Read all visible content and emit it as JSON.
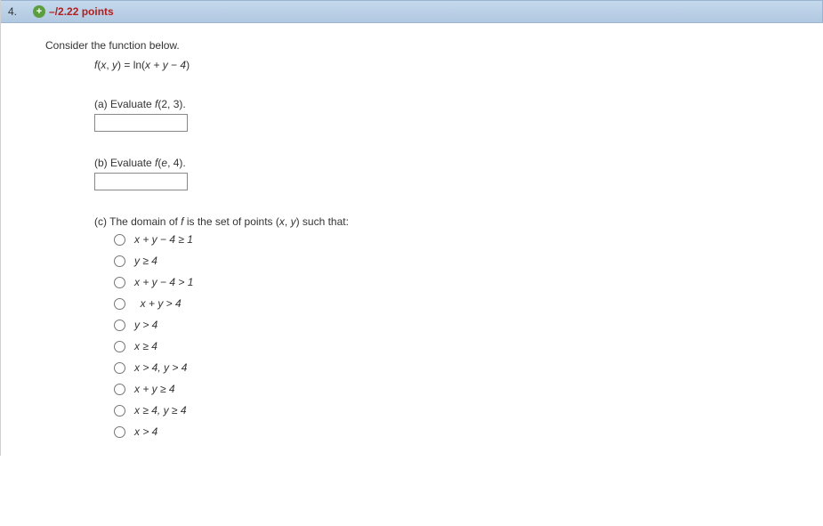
{
  "header": {
    "question_number": "4.",
    "points_text": "–/2.22 points"
  },
  "body": {
    "intro": "Consider the function below.",
    "function_lhs": "f",
    "function_args_open": "(",
    "function_var1": "x",
    "function_comma": ", ",
    "function_var2": "y",
    "function_args_close": ") = ",
    "function_rhs_ln": "ln(",
    "function_rhs_expr": "x + y − 4",
    "function_rhs_close": ")",
    "parts": {
      "a": {
        "label_prefix": "(a) Evaluate ",
        "label_fn": "f",
        "label_args": "(2, 3)."
      },
      "b": {
        "label_prefix": "(b) Evaluate ",
        "label_fn": "f",
        "label_open": "(",
        "label_e": "e",
        "label_rest": ", 4)."
      },
      "c": {
        "label_prefix": "(c) The domain of ",
        "label_fn": "f",
        "label_mid": " is the set of points (",
        "label_x": "x",
        "label_comma": ", ",
        "label_y": "y",
        "label_suffix": ") such that:",
        "options": [
          "x + y − 4 ≥ 1",
          "y ≥ 4",
          "x + y − 4 > 1",
          "  x + y > 4",
          "y > 4",
          "x ≥ 4",
          "x > 4, y > 4",
          "x + y ≥ 4",
          "x ≥ 4, y ≥ 4",
          "x > 4"
        ]
      }
    }
  }
}
